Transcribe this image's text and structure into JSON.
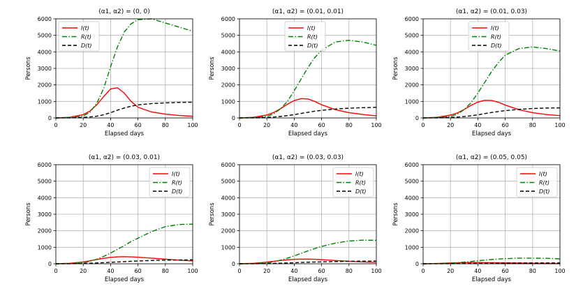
{
  "chart_data": [
    {
      "type": "line",
      "title": "(α1, α2) = (0, 0)",
      "xlabel": "Elapsed days",
      "ylabel": "Persons",
      "xlim": [
        0,
        100
      ],
      "ylim": [
        0,
        6000
      ],
      "xticks": [
        0,
        20,
        40,
        60,
        80,
        100
      ],
      "yticks": [
        0,
        1000,
        2000,
        3000,
        4000,
        5000,
        6000
      ],
      "grid": true,
      "legend": "top-left",
      "x": [
        0,
        10,
        20,
        25,
        30,
        35,
        40,
        45,
        50,
        55,
        60,
        70,
        80,
        90,
        100
      ],
      "series": [
        {
          "name": "I(t)",
          "color": "#ff0000",
          "style": "solid",
          "values": [
            0,
            40,
            200,
            420,
            800,
            1300,
            1750,
            1830,
            1500,
            1000,
            650,
            360,
            230,
            150,
            100
          ]
        },
        {
          "name": "R(t)",
          "color": "#008000",
          "style": "dashdot",
          "values": [
            0,
            15,
            120,
            350,
            900,
            1800,
            3100,
            4300,
            5200,
            5700,
            5950,
            6000,
            5750,
            5500,
            5250
          ]
        },
        {
          "name": "D(t)",
          "color": "#000000",
          "style": "dashed",
          "values": [
            0,
            5,
            30,
            60,
            110,
            190,
            320,
            470,
            600,
            710,
            790,
            870,
            910,
            940,
            950
          ]
        }
      ]
    },
    {
      "type": "line",
      "title": "(α1, α2) = (0.01, 0.01)",
      "xlabel": "Elapsed days",
      "ylabel": "Persons",
      "xlim": [
        0,
        100
      ],
      "ylim": [
        0,
        6000
      ],
      "xticks": [
        0,
        20,
        40,
        60,
        80,
        100
      ],
      "yticks": [
        0,
        1000,
        2000,
        3000,
        4000,
        5000,
        6000
      ],
      "grid": true,
      "legend": "top-center",
      "x": [
        0,
        10,
        20,
        25,
        30,
        35,
        40,
        45,
        50,
        55,
        60,
        70,
        80,
        90,
        100
      ],
      "series": [
        {
          "name": "I(t)",
          "color": "#ff0000",
          "style": "solid",
          "values": [
            0,
            40,
            180,
            330,
            560,
            830,
            1050,
            1170,
            1150,
            1000,
            800,
            500,
            320,
            210,
            130
          ]
        },
        {
          "name": "R(t)",
          "color": "#008000",
          "style": "dashdot",
          "values": [
            0,
            15,
            100,
            250,
            550,
            1000,
            1650,
            2350,
            3050,
            3650,
            4100,
            4600,
            4700,
            4600,
            4400
          ]
        },
        {
          "name": "D(t)",
          "color": "#000000",
          "style": "dashed",
          "values": [
            0,
            5,
            30,
            55,
            90,
            140,
            200,
            270,
            340,
            410,
            460,
            540,
            590,
            620,
            640
          ]
        }
      ]
    },
    {
      "type": "line",
      "title": "(α1, α2) = (0.01, 0.03)",
      "xlabel": "Elapsed days",
      "ylabel": "Persons",
      "xlim": [
        0,
        100
      ],
      "ylim": [
        0,
        6000
      ],
      "xticks": [
        0,
        20,
        40,
        60,
        80,
        100
      ],
      "yticks": [
        0,
        1000,
        2000,
        3000,
        4000,
        5000,
        6000
      ],
      "grid": true,
      "legend": "top-center",
      "x": [
        0,
        10,
        20,
        25,
        30,
        35,
        40,
        45,
        50,
        55,
        60,
        70,
        80,
        90,
        100
      ],
      "series": [
        {
          "name": "I(t)",
          "color": "#ff0000",
          "style": "solid",
          "values": [
            0,
            40,
            170,
            300,
            510,
            760,
            960,
            1070,
            1060,
            950,
            780,
            500,
            320,
            210,
            140
          ]
        },
        {
          "name": "R(t)",
          "color": "#008000",
          "style": "dashdot",
          "values": [
            0,
            15,
            90,
            230,
            500,
            920,
            1500,
            2150,
            2800,
            3350,
            3800,
            4200,
            4300,
            4200,
            4050
          ]
        },
        {
          "name": "D(t)",
          "color": "#000000",
          "style": "dashed",
          "values": [
            0,
            5,
            30,
            50,
            85,
            130,
            190,
            260,
            330,
            390,
            440,
            520,
            570,
            600,
            610
          ]
        }
      ]
    },
    {
      "type": "line",
      "title": "(α1, α2) = (0.03, 0.01)",
      "xlabel": "Elapsed days",
      "ylabel": "Persons",
      "xlim": [
        0,
        100
      ],
      "ylim": [
        0,
        6000
      ],
      "xticks": [
        0,
        20,
        40,
        60,
        80,
        100
      ],
      "yticks": [
        0,
        1000,
        2000,
        3000,
        4000,
        5000,
        6000
      ],
      "grid": true,
      "legend": "top-right",
      "x": [
        0,
        10,
        20,
        25,
        30,
        35,
        40,
        45,
        50,
        55,
        60,
        70,
        80,
        90,
        100
      ],
      "series": [
        {
          "name": "I(t)",
          "color": "#ff0000",
          "style": "solid",
          "values": [
            0,
            30,
            110,
            180,
            260,
            330,
            390,
            420,
            430,
            420,
            400,
            340,
            280,
            220,
            170
          ]
        },
        {
          "name": "R(t)",
          "color": "#008000",
          "style": "dashdot",
          "values": [
            0,
            10,
            70,
            150,
            280,
            450,
            650,
            880,
            1100,
            1350,
            1550,
            1950,
            2250,
            2380,
            2400
          ]
        },
        {
          "name": "D(t)",
          "color": "#000000",
          "style": "dashed",
          "values": [
            0,
            3,
            20,
            35,
            50,
            70,
            90,
            110,
            130,
            150,
            170,
            200,
            220,
            230,
            240
          ]
        }
      ]
    },
    {
      "type": "line",
      "title": "(α1, α2) = (0.03, 0.03)",
      "xlabel": "Elapsed days",
      "ylabel": "Persons",
      "xlim": [
        0,
        100
      ],
      "ylim": [
        0,
        6000
      ],
      "xticks": [
        0,
        20,
        40,
        60,
        80,
        100
      ],
      "yticks": [
        0,
        1000,
        2000,
        3000,
        4000,
        5000,
        6000
      ],
      "grid": true,
      "legend": "top-right",
      "x": [
        0,
        10,
        20,
        25,
        30,
        35,
        40,
        45,
        50,
        55,
        60,
        70,
        80,
        90,
        100
      ],
      "series": [
        {
          "name": "I(t)",
          "color": "#ff0000",
          "style": "solid",
          "values": [
            0,
            30,
            100,
            150,
            200,
            240,
            270,
            280,
            280,
            270,
            250,
            200,
            150,
            110,
            80
          ]
        },
        {
          "name": "R(t)",
          "color": "#008000",
          "style": "dashdot",
          "values": [
            0,
            10,
            60,
            120,
            220,
            340,
            480,
            630,
            780,
            920,
            1050,
            1250,
            1380,
            1430,
            1420
          ]
        },
        {
          "name": "D(t)",
          "color": "#000000",
          "style": "dashed",
          "values": [
            0,
            3,
            15,
            25,
            35,
            50,
            65,
            80,
            95,
            105,
            115,
            135,
            150,
            160,
            165
          ]
        }
      ]
    },
    {
      "type": "line",
      "title": "(α1, α2) = (0.05, 0.05)",
      "xlabel": "Elapsed days",
      "ylabel": "Persons",
      "xlim": [
        0,
        100
      ],
      "ylim": [
        0,
        6000
      ],
      "xticks": [
        0,
        20,
        40,
        60,
        80,
        100
      ],
      "yticks": [
        0,
        1000,
        2000,
        3000,
        4000,
        5000,
        6000
      ],
      "grid": true,
      "legend": "top-right",
      "x": [
        0,
        10,
        20,
        25,
        30,
        35,
        40,
        45,
        50,
        55,
        60,
        70,
        80,
        90,
        100
      ],
      "series": [
        {
          "name": "I(t)",
          "color": "#ff0000",
          "style": "solid",
          "values": [
            0,
            20,
            50,
            60,
            70,
            75,
            75,
            72,
            68,
            62,
            55,
            45,
            35,
            28,
            20
          ]
        },
        {
          "name": "R(t)",
          "color": "#008000",
          "style": "dashdot",
          "values": [
            0,
            10,
            40,
            65,
            100,
            140,
            180,
            220,
            260,
            290,
            310,
            340,
            340,
            330,
            300
          ]
        },
        {
          "name": "D(t)",
          "color": "#000000",
          "style": "dashed",
          "values": [
            0,
            2,
            8,
            12,
            18,
            22,
            27,
            32,
            36,
            40,
            42,
            46,
            48,
            48,
            48
          ]
        }
      ]
    }
  ]
}
